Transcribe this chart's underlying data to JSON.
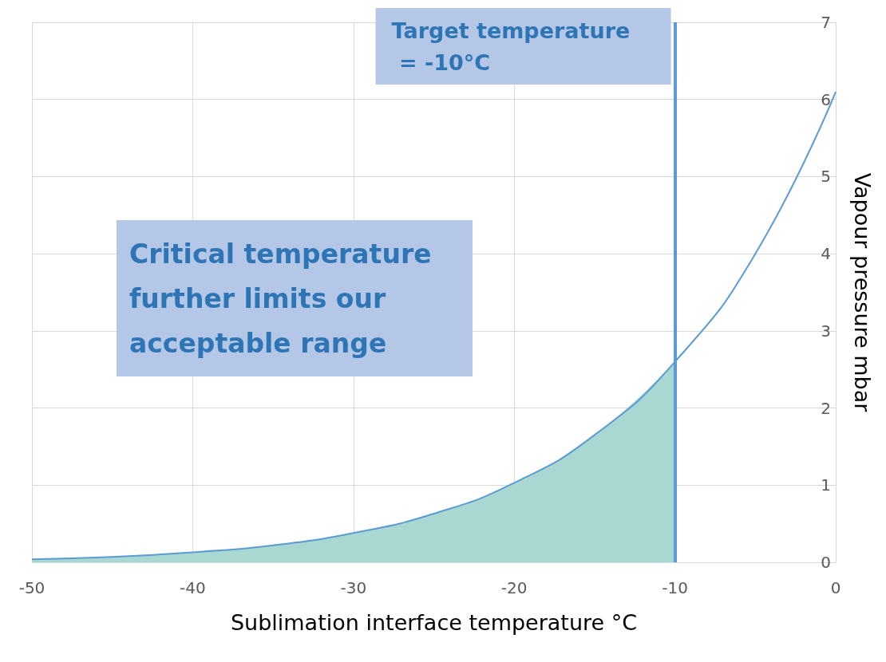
{
  "chart_data": {
    "type": "line",
    "xlabel": "Sublimation interface temperature °C",
    "ylabel": "Vapour pressure mbar",
    "xlim": [
      -50,
      0
    ],
    "xticks": [
      -50,
      -40,
      -30,
      -20,
      -10,
      0
    ],
    "ylim": [
      0,
      7
    ],
    "yticks": [
      0,
      1,
      2,
      3,
      4,
      5,
      6,
      7
    ],
    "grid": true,
    "marker": "none",
    "line_style": "solid",
    "series": [
      {
        "type": "area",
        "color": "#a9d8d2",
        "x": [
          -50,
          -45,
          -40,
          -35,
          -30,
          -25,
          -20,
          -15,
          -10
        ],
        "values": [
          0.04,
          0.07,
          0.13,
          0.22,
          0.38,
          0.63,
          1.03,
          1.65,
          2.6
        ]
      },
      {
        "type": "line",
        "color": "#5b9bd5",
        "x": [
          -50,
          -45,
          -40,
          -35,
          -30,
          -25,
          -20,
          -15,
          -10,
          -5,
          0
        ],
        "values": [
          0.04,
          0.07,
          0.13,
          0.22,
          0.38,
          0.63,
          1.03,
          1.65,
          2.6,
          4.0,
          6.1
        ]
      }
    ],
    "ref_lines": [
      {
        "axis": "x",
        "value": -10,
        "label": "Target temperature = -10°C",
        "color": "#5b9bd5"
      }
    ],
    "annotations": [
      "Critical temperature further limits our acceptable range"
    ]
  }
}
